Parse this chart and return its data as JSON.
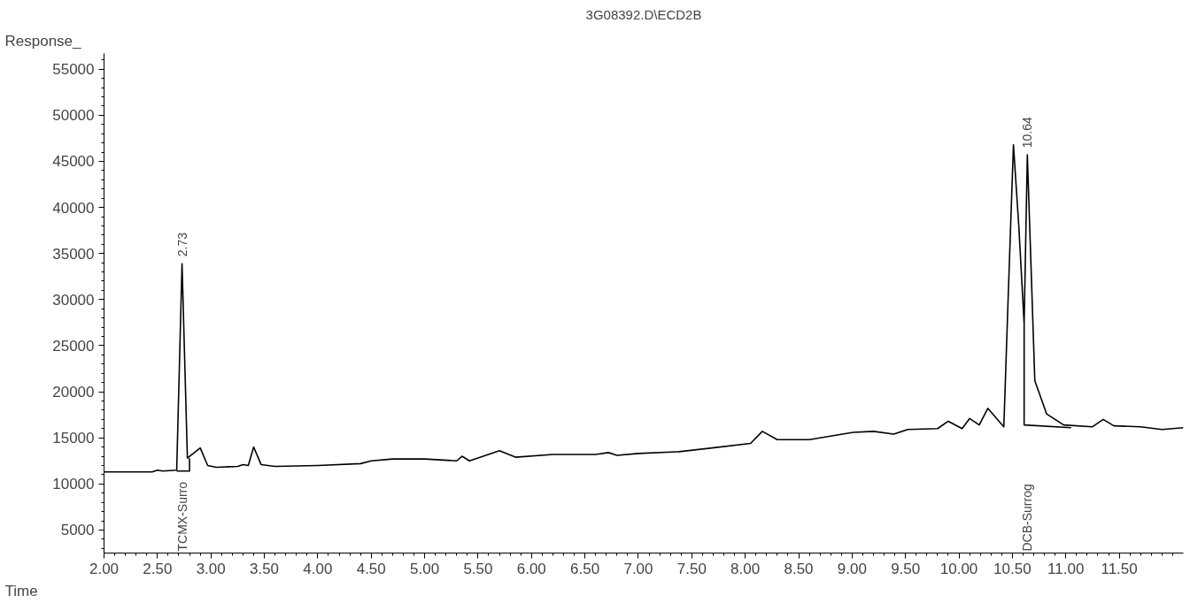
{
  "chart_data": {
    "type": "line",
    "title": "3G08392.D\\ECD2B",
    "xlabel": "Time",
    "ylabel": "Response_",
    "xlim": [
      2.0,
      12.1
    ],
    "ylim": [
      2500,
      56700
    ],
    "xticks": [
      {
        "value": 2.0,
        "label": "2.00"
      },
      {
        "value": 2.5,
        "label": "2.50"
      },
      {
        "value": 3.0,
        "label": "3.00"
      },
      {
        "value": 3.5,
        "label": "3.50"
      },
      {
        "value": 4.0,
        "label": "4.00"
      },
      {
        "value": 4.5,
        "label": "4.50"
      },
      {
        "value": 5.0,
        "label": "5.00"
      },
      {
        "value": 5.5,
        "label": "5.50"
      },
      {
        "value": 6.0,
        "label": "6.00"
      },
      {
        "value": 6.5,
        "label": "6.50"
      },
      {
        "value": 7.0,
        "label": "7.00"
      },
      {
        "value": 7.5,
        "label": "7.50"
      },
      {
        "value": 8.0,
        "label": "8.00"
      },
      {
        "value": 8.5,
        "label": "8.50"
      },
      {
        "value": 9.0,
        "label": "9.00"
      },
      {
        "value": 9.5,
        "label": "9.50"
      },
      {
        "value": 10.0,
        "label": "10.00"
      },
      {
        "value": 10.5,
        "label": "10.50"
      },
      {
        "value": 11.0,
        "label": "11.00"
      },
      {
        "value": 11.5,
        "label": "11.50"
      }
    ],
    "yticks": [
      5000,
      10000,
      15000,
      20000,
      25000,
      30000,
      35000,
      40000,
      45000,
      50000,
      55000
    ],
    "grid": false,
    "marker": "none",
    "line_style": "solid",
    "series": [
      {
        "color": "#000000",
        "x": [
          2.0,
          2.45,
          2.5,
          2.55,
          2.68,
          2.73,
          2.78,
          2.9,
          2.97,
          3.05,
          3.25,
          3.3,
          3.35,
          3.4,
          3.47,
          3.6,
          4.0,
          4.4,
          4.5,
          4.7,
          5.0,
          5.3,
          5.35,
          5.42,
          5.7,
          5.85,
          6.2,
          6.6,
          6.72,
          6.8,
          7.0,
          7.38,
          7.69,
          8.05,
          8.16,
          8.3,
          8.6,
          9.01,
          9.2,
          9.39,
          9.52,
          9.8,
          9.9,
          10.03,
          10.1,
          10.19,
          10.27,
          10.42,
          10.46,
          10.51,
          10.56,
          10.61,
          10.64,
          10.71,
          10.82,
          10.98,
          11.25,
          11.35,
          11.45,
          11.7,
          11.9,
          12.0,
          12.1
        ],
        "values": [
          11300,
          11300,
          11500,
          11400,
          11500,
          33900,
          12800,
          13900,
          12000,
          11800,
          11900,
          12100,
          12000,
          14000,
          12100,
          11900,
          12000,
          12200,
          12500,
          12700,
          12700,
          12500,
          13000,
          12500,
          13600,
          12900,
          13200,
          13200,
          13400,
          13100,
          13300,
          13500,
          13900,
          14400,
          15700,
          14800,
          14800,
          15600,
          15700,
          15400,
          15900,
          16000,
          16800,
          16000,
          17100,
          16400,
          18200,
          16200,
          30000,
          46800,
          38000,
          27400,
          45700,
          21200,
          17600,
          16400,
          16200,
          17000,
          16300,
          16200,
          15900,
          16000,
          16100
        ]
      },
      {
        "color": "#000000",
        "x": [
          2.68,
          2.8,
          2.8
        ],
        "values": [
          11400,
          11400,
          12800
        ]
      },
      {
        "color": "#000000",
        "x": [
          10.61,
          10.61,
          11.05
        ],
        "values": [
          27400,
          16400,
          16100
        ]
      }
    ],
    "annotations": [
      {
        "text": "2.73",
        "x": 2.73,
        "y": 33900
      },
      {
        "text": "10.64",
        "x": 10.64,
        "y": 45700
      },
      "TCMX-Surro",
      "DCB-Surrog"
    ]
  }
}
